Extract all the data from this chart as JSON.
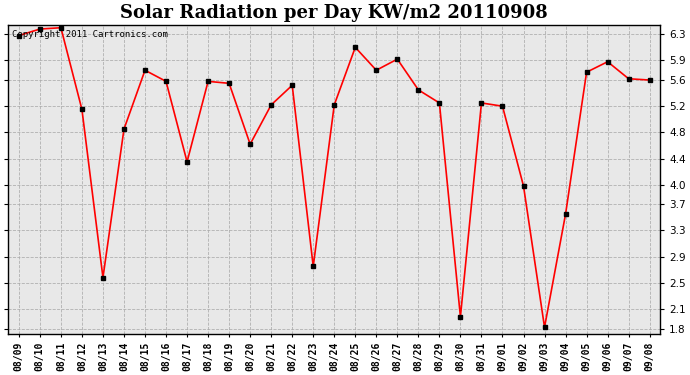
{
  "title": "Solar Radiation per Day KW/m2 20110908",
  "copyright_text": "Copyright 2011 Cartronics.com",
  "x_labels": [
    "08/09",
    "08/10",
    "08/11",
    "08/12",
    "08/13",
    "08/14",
    "08/15",
    "08/16",
    "08/17",
    "08/18",
    "08/19",
    "08/20",
    "08/21",
    "08/22",
    "08/23",
    "08/24",
    "08/25",
    "08/26",
    "08/27",
    "08/28",
    "08/29",
    "08/30",
    "08/31",
    "09/01",
    "09/02",
    "09/03",
    "09/04",
    "09/05",
    "09/06",
    "09/07",
    "09/08"
  ],
  "y_values": [
    6.28,
    6.38,
    6.4,
    5.15,
    2.58,
    4.85,
    5.75,
    5.58,
    4.35,
    5.58,
    5.55,
    4.62,
    5.22,
    5.52,
    2.75,
    5.22,
    6.1,
    5.75,
    5.92,
    5.45,
    5.25,
    1.98,
    5.25,
    5.2,
    3.98,
    1.82,
    3.55,
    5.72,
    5.88,
    5.62,
    5.6
  ],
  "y_ticks": [
    1.8,
    2.1,
    2.5,
    2.9,
    3.3,
    3.7,
    4.0,
    4.4,
    4.8,
    5.2,
    5.6,
    5.9,
    6.3
  ],
  "y_min": 1.72,
  "y_max": 6.44,
  "line_color": "red",
  "marker_color": "black",
  "marker_size": 3.5,
  "background_color": "#e8e8e8",
  "grid_color": "#aaaaaa",
  "title_fontsize": 13,
  "tick_fontsize": 7,
  "copyright_fontsize": 6.5
}
